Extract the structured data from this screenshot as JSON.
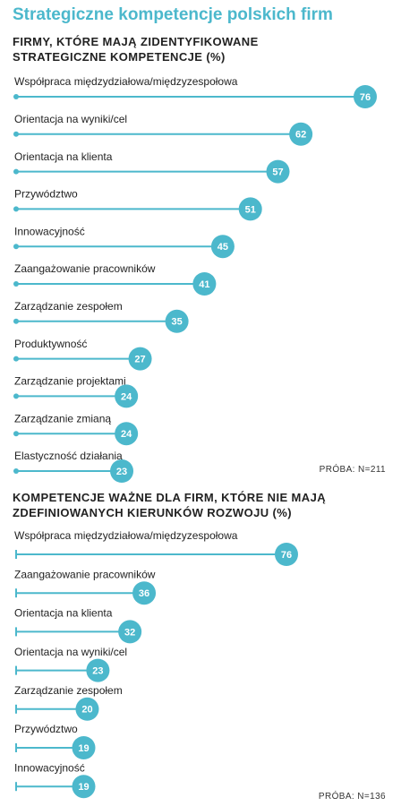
{
  "title": "Strategiczne kompetencje polskich firm",
  "colors": {
    "accent": "#4cb8cc",
    "text": "#222222"
  },
  "chart_data": [
    {
      "type": "bar",
      "title_lines": [
        "FIRMY, KTÓRE MAJĄ ZIDENTYFIKOWANE",
        "STRATEGICZNE KOMPETENCJE (%)"
      ],
      "sample": "PRÓBA: N=211",
      "bar_start": "dot",
      "xlim": [
        0,
        76
      ],
      "categories": [
        "Współpraca międzydziałowa/międzyzespołowa",
        "Orientacja na wyniki/cel",
        "Orientacja na klienta",
        "Przywództwo",
        "Innowacyjność",
        "Zaangażowanie pracowników",
        "Zarządzanie zespołem",
        "Produktywność",
        "Zarządzanie projektami",
        "Zarządzanie zmianą",
        "Elastyczność działania"
      ],
      "values": [
        76,
        62,
        57,
        51,
        45,
        41,
        35,
        27,
        24,
        24,
        23
      ]
    },
    {
      "type": "bar",
      "title_lines": [
        "KOMPETENCJE WAŻNE DLA FIRM, KTÓRE NIE MAJĄ",
        "ZDEFINIOWANYCH KIERUNKÓW ROZWOJU (%)"
      ],
      "sample": "PRÓBA: N=136",
      "bar_start": "tick",
      "xlim": [
        0,
        76
      ],
      "categories": [
        "Współpraca międzydziałowa/międzyzespołowa",
        "Zaangażowanie pracowników",
        "Orientacja na klienta",
        "Orientacja na wyniki/cel",
        "Zarządzanie zespołem",
        "Przywództwo",
        "Innowacyjność"
      ],
      "values": [
        76,
        36,
        32,
        23,
        20,
        19,
        19
      ]
    }
  ]
}
